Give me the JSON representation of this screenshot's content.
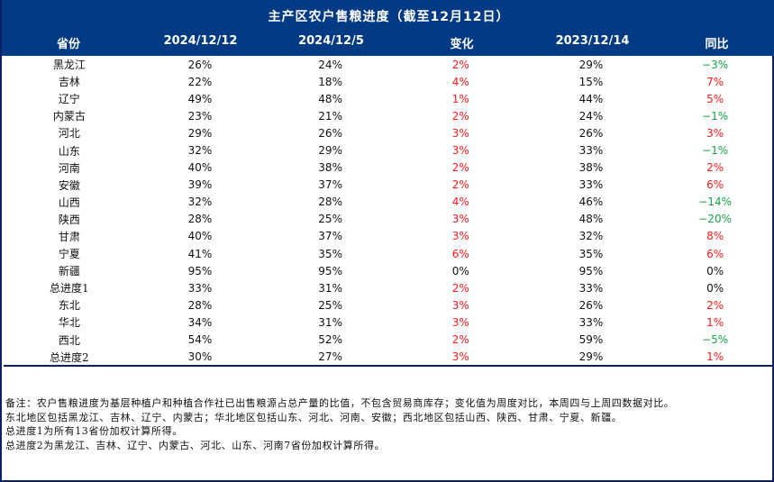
{
  "title": "主产区农户售粮进度（截至12月12日）",
  "colors": {
    "header_bg": "#033a84",
    "header_text": "#ffffff",
    "positive": "#ff1a1a",
    "negative": "#18a34a",
    "neutral": "#111111",
    "border": "#0a1f6b"
  },
  "columns": [
    "省份",
    "2024/12/12",
    "2024/12/5",
    "变化",
    "2023/12/14",
    "同比"
  ],
  "rows": [
    {
      "province": "黑龙江",
      "current": "26%",
      "prev_week": "24%",
      "change": "2%",
      "change_dir": "up",
      "last_year": "29%",
      "yoy": "−3%",
      "yoy_dir": "down"
    },
    {
      "province": "吉林",
      "current": "22%",
      "prev_week": "18%",
      "change": "4%",
      "change_dir": "up",
      "last_year": "15%",
      "yoy": "7%",
      "yoy_dir": "up"
    },
    {
      "province": "辽宁",
      "current": "49%",
      "prev_week": "48%",
      "change": "1%",
      "change_dir": "up",
      "last_year": "44%",
      "yoy": "5%",
      "yoy_dir": "up"
    },
    {
      "province": "内蒙古",
      "current": "23%",
      "prev_week": "21%",
      "change": "2%",
      "change_dir": "up",
      "last_year": "24%",
      "yoy": "−1%",
      "yoy_dir": "down"
    },
    {
      "province": "河北",
      "current": "29%",
      "prev_week": "26%",
      "change": "3%",
      "change_dir": "up",
      "last_year": "26%",
      "yoy": "3%",
      "yoy_dir": "up"
    },
    {
      "province": "山东",
      "current": "32%",
      "prev_week": "29%",
      "change": "3%",
      "change_dir": "up",
      "last_year": "33%",
      "yoy": "−1%",
      "yoy_dir": "down"
    },
    {
      "province": "河南",
      "current": "40%",
      "prev_week": "38%",
      "change": "2%",
      "change_dir": "up",
      "last_year": "38%",
      "yoy": "2%",
      "yoy_dir": "up"
    },
    {
      "province": "安徽",
      "current": "39%",
      "prev_week": "37%",
      "change": "2%",
      "change_dir": "up",
      "last_year": "33%",
      "yoy": "6%",
      "yoy_dir": "up"
    },
    {
      "province": "山西",
      "current": "32%",
      "prev_week": "28%",
      "change": "4%",
      "change_dir": "up",
      "last_year": "46%",
      "yoy": "−14%",
      "yoy_dir": "down"
    },
    {
      "province": "陕西",
      "current": "28%",
      "prev_week": "25%",
      "change": "3%",
      "change_dir": "up",
      "last_year": "48%",
      "yoy": "−20%",
      "yoy_dir": "down"
    },
    {
      "province": "甘肃",
      "current": "40%",
      "prev_week": "37%",
      "change": "3%",
      "change_dir": "up",
      "last_year": "32%",
      "yoy": "8%",
      "yoy_dir": "up"
    },
    {
      "province": "宁夏",
      "current": "41%",
      "prev_week": "35%",
      "change": "6%",
      "change_dir": "up",
      "last_year": "35%",
      "yoy": "6%",
      "yoy_dir": "up"
    },
    {
      "province": "新疆",
      "current": "95%",
      "prev_week": "95%",
      "change": "0%",
      "change_dir": "flat",
      "last_year": "95%",
      "yoy": "0%",
      "yoy_dir": "flat"
    },
    {
      "province": "总进度1",
      "current": "33%",
      "prev_week": "31%",
      "change": "2%",
      "change_dir": "up",
      "last_year": "33%",
      "yoy": "0%",
      "yoy_dir": "flat"
    },
    {
      "province": "东北",
      "current": "28%",
      "prev_week": "25%",
      "change": "3%",
      "change_dir": "up",
      "last_year": "26%",
      "yoy": "2%",
      "yoy_dir": "up"
    },
    {
      "province": "华北",
      "current": "34%",
      "prev_week": "31%",
      "change": "3%",
      "change_dir": "up",
      "last_year": "33%",
      "yoy": "1%",
      "yoy_dir": "up"
    },
    {
      "province": "西北",
      "current": "54%",
      "prev_week": "52%",
      "change": "2%",
      "change_dir": "up",
      "last_year": "59%",
      "yoy": "−5%",
      "yoy_dir": "down"
    },
    {
      "province": "总进度2",
      "current": "30%",
      "prev_week": "27%",
      "change": "3%",
      "change_dir": "up",
      "last_year": "29%",
      "yoy": "1%",
      "yoy_dir": "up"
    }
  ],
  "notes": [
    "备注：农户售粮进度为基层种植户和种植合作社已出售粮源占总产量的比值，不包含贸易商库存；变化值为周度对比，本周四与上周四数据对比。",
    "东北地区包括黑龙江、吉林、辽宁、内蒙古；华北地区包括山东、河北、河南、安徽；西北地区包括山西、陕西、甘肃、宁夏、新疆。",
    "总进度1为所有13省份加权计算所得。",
    "总进度2为黑龙江、吉林、辽宁、内蒙古、河北、山东、河南7省份加权计算所得。"
  ]
}
